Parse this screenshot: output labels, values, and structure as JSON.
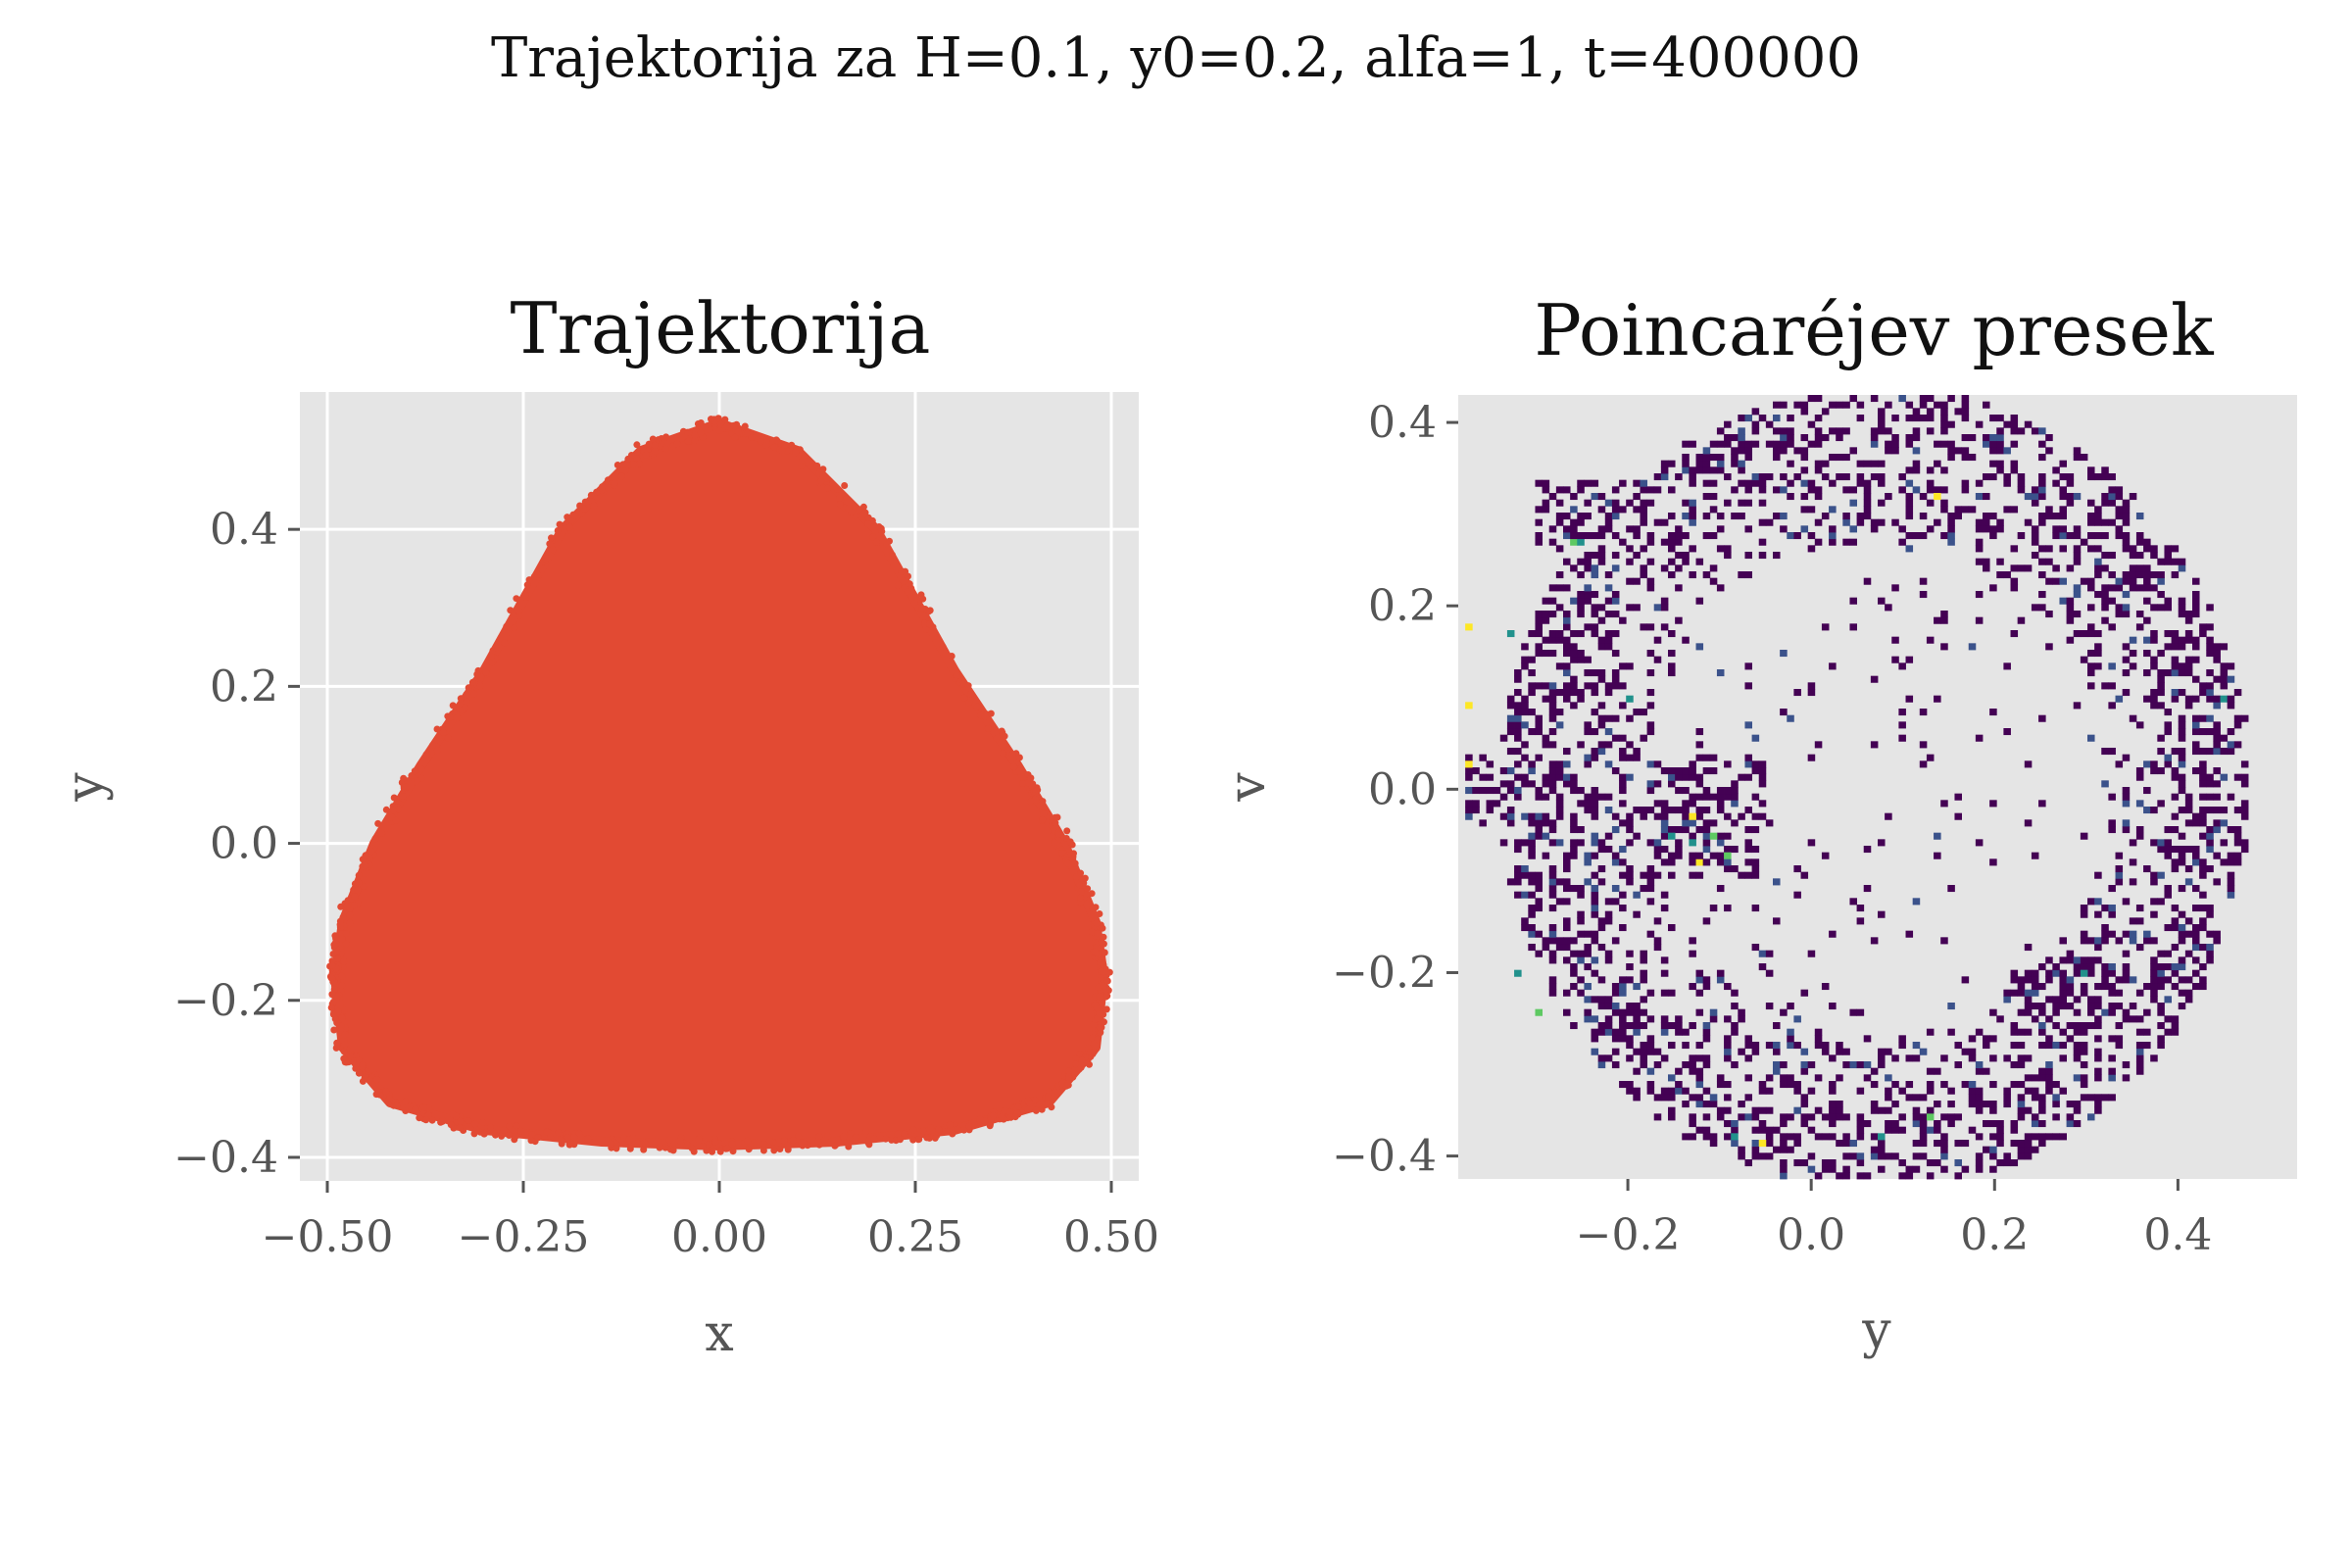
{
  "figure": {
    "suptitle": "Trajektorija za H=0.1, y0=0.2, alfa=1, t=400000"
  },
  "chart_data": [
    {
      "type": "scatter",
      "title": "Trajektorija",
      "xlabel": "x",
      "ylabel": "y",
      "xlim": [
        -0.535,
        0.535
      ],
      "ylim": [
        -0.43,
        0.575
      ],
      "xticks": [
        -0.5,
        -0.25,
        0.0,
        0.25,
        0.5
      ],
      "xtick_labels": [
        "−0.50",
        "−0.25",
        "0.00",
        "0.25",
        "0.50"
      ],
      "yticks": [
        -0.4,
        -0.2,
        0.0,
        0.2,
        0.4
      ],
      "ytick_labels": [
        "−0.4",
        "−0.2",
        "0.0",
        "0.2",
        "0.4"
      ],
      "grid": true,
      "background": "#e5e5e5",
      "marker_color": "#e24a33",
      "region_boundary": {
        "x": [
          0.0,
          0.1,
          0.2,
          0.3,
          0.38,
          0.44,
          0.48,
          0.49,
          0.48,
          0.42,
          0.3,
          0.15,
          0.0,
          -0.15,
          -0.3,
          -0.42,
          -0.48,
          -0.49,
          -0.48,
          -0.44,
          -0.38,
          -0.3,
          -0.2,
          -0.1
        ],
        "y": [
          0.535,
          0.5,
          0.4,
          0.22,
          0.1,
          0.0,
          -0.1,
          -0.17,
          -0.26,
          -0.33,
          -0.365,
          -0.38,
          -0.385,
          -0.38,
          -0.365,
          -0.33,
          -0.26,
          -0.17,
          -0.1,
          0.0,
          0.1,
          0.22,
          0.4,
          0.5
        ]
      }
    },
    {
      "type": "heatmap",
      "title": "Poincaréjev presek",
      "xlabel": "y",
      "ylabel": "v",
      "xlim": [
        -0.385,
        0.53
      ],
      "ylim": [
        -0.425,
        0.43
      ],
      "xticks": [
        -0.2,
        0.0,
        0.2,
        0.4
      ],
      "xtick_labels": [
        "−0.2",
        "0.0",
        "0.2",
        "0.4"
      ],
      "yticks": [
        -0.4,
        -0.2,
        0.0,
        0.2,
        0.4
      ],
      "ytick_labels": [
        "−0.4",
        "−0.2",
        "0.0",
        "0.2",
        "0.4"
      ],
      "grid": false,
      "background": "#e5e5e5",
      "colormap": "viridis",
      "colormap_colors": [
        "#440154",
        "#3b528b",
        "#21918c",
        "#5ec962",
        "#fde725"
      ],
      "bins": 120,
      "ring": {
        "center": [
          0.07,
          0.0
        ],
        "outer_radius": 0.44,
        "inner_radius": 0.27,
        "density_rows": [
          {
            "v": 0.3,
            "y_from": -0.3,
            "y_to": -0.2
          },
          {
            "v": 0.0,
            "y_from": -0.38,
            "y_to": -0.05
          },
          {
            "v": -0.06,
            "y_from": -0.18,
            "y_to": -0.05
          },
          {
            "v": -0.22,
            "y_from": 0.22,
            "y_to": 0.32
          },
          {
            "v": 0.17,
            "y_from": 0.34,
            "y_to": 0.42
          }
        ]
      },
      "hotspots": [
        {
          "y": -0.37,
          "v": 0.18,
          "level": 4
        },
        {
          "y": -0.375,
          "v": 0.09,
          "level": 4
        },
        {
          "y": -0.375,
          "v": 0.03,
          "level": 4
        },
        {
          "y": 0.14,
          "v": 0.32,
          "level": 4
        },
        {
          "y": -0.05,
          "v": -0.385,
          "level": 4
        },
        {
          "y": -0.13,
          "v": -0.03,
          "level": 4
        },
        {
          "y": -0.12,
          "v": -0.08,
          "level": 4
        },
        {
          "y": -0.11,
          "v": -0.05,
          "level": 3
        },
        {
          "y": -0.09,
          "v": -0.07,
          "level": 3
        },
        {
          "y": -0.26,
          "v": 0.27,
          "level": 3
        },
        {
          "y": -0.3,
          "v": -0.24,
          "level": 3
        },
        {
          "y": -0.25,
          "v": 0.27,
          "level": 2
        },
        {
          "y": -0.33,
          "v": 0.17,
          "level": 2
        },
        {
          "y": -0.2,
          "v": 0.1,
          "level": 2
        },
        {
          "y": -0.32,
          "v": -0.2,
          "level": 2
        },
        {
          "y": -0.08,
          "v": -0.38,
          "level": 2
        },
        {
          "y": 0.13,
          "v": -0.36,
          "level": 3
        },
        {
          "y": 0.08,
          "v": -0.38,
          "level": 2
        },
        {
          "y": 0.45,
          "v": 0.1,
          "level": 2
        },
        {
          "y": 0.3,
          "v": -0.2,
          "level": 2
        },
        {
          "y": -0.15,
          "v": -0.05,
          "level": 2
        },
        {
          "y": -0.13,
          "v": -0.06,
          "level": 2
        }
      ]
    }
  ]
}
